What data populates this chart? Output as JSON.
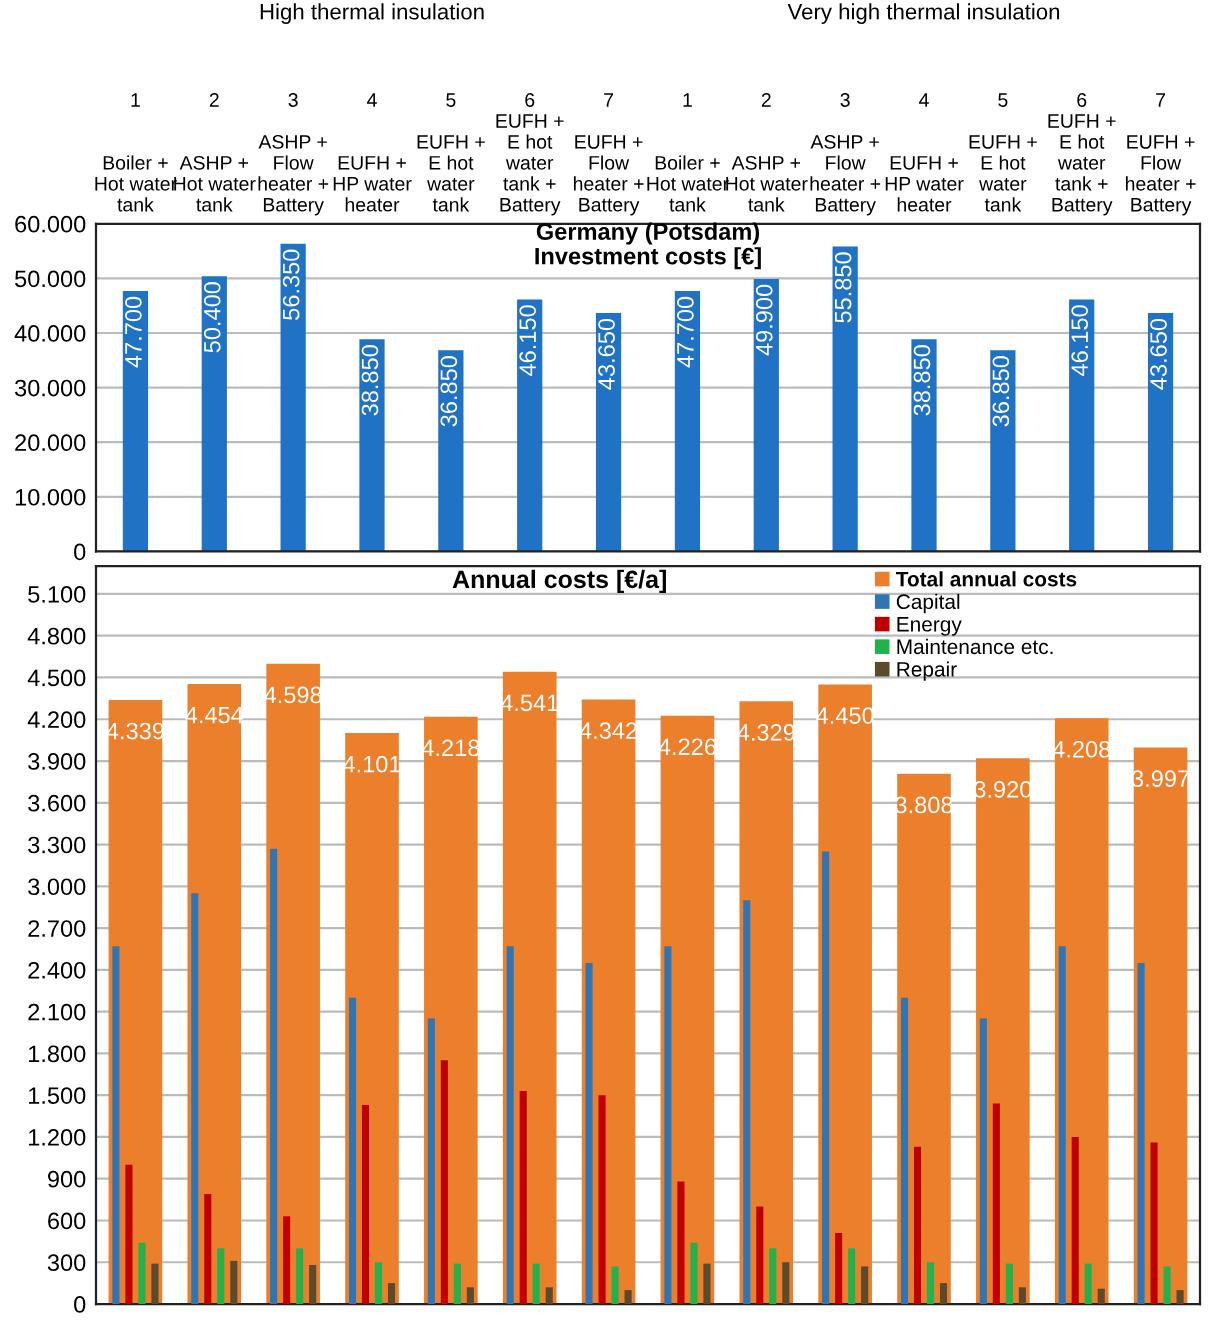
{
  "chart_data": [
    {
      "type": "bar",
      "title": "Germany (Potsdam)",
      "subtitle": "Investment costs [€]",
      "annotations": [
        "High thermal insulation",
        "Very high thermal insulation"
      ],
      "categories": [
        "1\nBoiler +\nHot water\ntank",
        "2\nASHP +\nHot water\ntank",
        "3\nASHP +\nFlow\nheater +\nBattery",
        "4\nEUFH +\nHP water\nheater",
        "5\nEUFH +\nE hot\nwater\ntank",
        "6\nEUFH +\nE hot\nwater\ntank +\nBattery",
        "7\nEUFH +\nFlow\nheater +\nBattery",
        "1\nBoiler +\nHot water\ntank",
        "2\nASHP +\nHot water\ntank",
        "3\nASHP +\nFlow\nheater +\nBattery",
        "4\nEUFH +\nHP water\nheater",
        "5\nEUFH +\nE hot\nwater\ntank",
        "6\nEUFH +\nE hot\nwater\ntank +\nBattery",
        "7\nEUFH +\nFlow\nheater +\nBattery"
      ],
      "values": [
        47700,
        50400,
        56350,
        38850,
        36850,
        46150,
        43650,
        47700,
        49900,
        55850,
        38850,
        36850,
        46150,
        43650
      ],
      "value_labels": [
        "47.700",
        "50.400",
        "56.350",
        "38.850",
        "36.850",
        "46.150",
        "43.650",
        "47.700",
        "49.900",
        "55.850",
        "38.850",
        "36.850",
        "46.150",
        "43.650"
      ],
      "color": "#1f72c4",
      "ylim": [
        0,
        60000
      ],
      "yticks": [
        {
          "value": 0,
          "label": "0"
        },
        {
          "value": 10000,
          "label": "10.000"
        },
        {
          "value": 20000,
          "label": "20.000"
        },
        {
          "value": 30000,
          "label": "30.000"
        },
        {
          "value": 40000,
          "label": "40.000"
        },
        {
          "value": 50000,
          "label": "50.000"
        },
        {
          "value": 60000,
          "label": "60.000"
        }
      ],
      "grid": "y"
    },
    {
      "type": "bar",
      "title": "Annual costs [€/a]",
      "tick_labels": "y",
      "legend": "top right",
      "series": [
        {
          "name": "Total annual costs",
          "color": "#ec7f2c",
          "values": [
            4339,
            4454,
            4598,
            4101,
            4218,
            4541,
            4342,
            4226,
            4329,
            4450,
            3808,
            3920,
            4208,
            3997
          ],
          "value_labels": [
            "4.339",
            "4.454",
            "4.598",
            "4.101",
            "4.218",
            "4.541",
            "4.342",
            "4.226",
            "4.329",
            "4.450",
            "3.808",
            "3.920",
            "4.208",
            "3.997"
          ]
        },
        {
          "name": "Capital",
          "color": "#2e75b6",
          "values": [
            2570,
            2950,
            3270,
            2200,
            2050,
            2570,
            2450,
            2570,
            2900,
            3250,
            2200,
            2050,
            2570,
            2450
          ]
        },
        {
          "name": "Energy",
          "color": "#c00000",
          "values": [
            1000,
            790,
            630,
            1430,
            1750,
            1530,
            1500,
            880,
            700,
            510,
            1130,
            1440,
            1200,
            1160
          ]
        },
        {
          "name": "Maintenance etc.",
          "color": "#22b14c",
          "values": [
            440,
            400,
            400,
            300,
            290,
            290,
            270,
            440,
            400,
            400,
            300,
            290,
            290,
            270
          ]
        },
        {
          "name": "Repair",
          "color": "#5b4a2b",
          "values": [
            290,
            310,
            280,
            150,
            120,
            120,
            100,
            290,
            300,
            270,
            150,
            120,
            110,
            100
          ]
        }
      ],
      "ylim": [
        0,
        5300
      ],
      "yticks": [
        {
          "value": 0,
          "label": "0"
        },
        {
          "value": 300,
          "label": "300"
        },
        {
          "value": 600,
          "label": "600"
        },
        {
          "value": 900,
          "label": "900"
        },
        {
          "value": 1200,
          "label": "1.200"
        },
        {
          "value": 1500,
          "label": "1.500"
        },
        {
          "value": 1800,
          "label": "1.800"
        },
        {
          "value": 2100,
          "label": "2.100"
        },
        {
          "value": 2400,
          "label": "2.400"
        },
        {
          "value": 2700,
          "label": "2.700"
        },
        {
          "value": 3000,
          "label": "3.000"
        },
        {
          "value": 3300,
          "label": "3.300"
        },
        {
          "value": 3600,
          "label": "3.600"
        },
        {
          "value": 3900,
          "label": "3.900"
        },
        {
          "value": 4200,
          "label": "4.200"
        },
        {
          "value": 4500,
          "label": "4.500"
        },
        {
          "value": 4800,
          "label": "4.800"
        },
        {
          "value": 5100,
          "label": "5.100"
        }
      ],
      "grid": "y"
    }
  ]
}
